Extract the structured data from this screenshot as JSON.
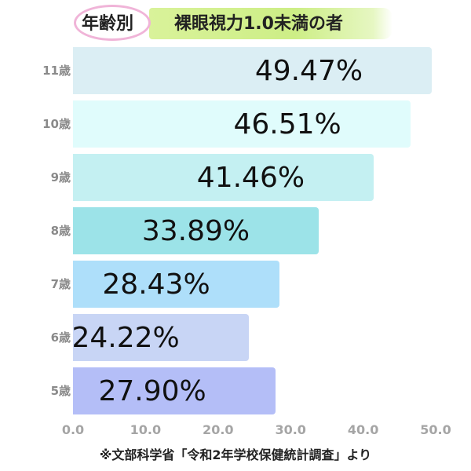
{
  "header": {
    "tag": "年齢別",
    "title": "裸眼視力1.0未満の者"
  },
  "source_note": "※文部科学省「令和2年学校保健統計調査」より",
  "chart_data": {
    "type": "bar",
    "orientation": "horizontal",
    "title": "年齢別 裸眼視力1.0未満の者",
    "xlabel": "",
    "ylabel": "",
    "xlim": [
      0,
      50
    ],
    "grid": false,
    "legend": null,
    "categories": [
      "11歳",
      "10歳",
      "9歳",
      "8歳",
      "7歳",
      "6歳",
      "5歳"
    ],
    "values": [
      49.47,
      46.51,
      41.46,
      33.89,
      28.43,
      24.22,
      27.9
    ],
    "value_labels": [
      "49.47%",
      "46.51%",
      "41.46%",
      "33.89%",
      "28.43%",
      "24.22%",
      "27.90%"
    ],
    "bar_colors": [
      "#dbeef4",
      "#e0fcfc",
      "#c4f0f2",
      "#9ce3e8",
      "#aedffa",
      "#c8d5f5",
      "#b4bef7"
    ],
    "x_ticks": [
      "0.0",
      "10.0",
      "20.0",
      "30.0",
      "40.0",
      "50.0"
    ],
    "x_tick_values": [
      0,
      10,
      20,
      30,
      40,
      50
    ],
    "annotation": "※文部科学省「令和2年学校保健統計調査」より"
  },
  "rows": [
    {
      "label": "11歳",
      "value": 49.47,
      "text": "49.47%",
      "color": "#dbeef4"
    },
    {
      "label": "10歳",
      "value": 46.51,
      "text": "46.51%",
      "color": "#e0fcfc"
    },
    {
      "label": "9歳",
      "value": 41.46,
      "text": "41.46%",
      "color": "#c4f0f2"
    },
    {
      "label": "8歳",
      "value": 33.89,
      "text": "33.89%",
      "color": "#9ce3e8"
    },
    {
      "label": "7歳",
      "value": 28.43,
      "text": "28.43%",
      "color": "#aedffa"
    },
    {
      "label": "6歳",
      "value": 24.22,
      "text": "24.22%",
      "color": "#c8d5f5"
    },
    {
      "label": "5歳",
      "value": 27.9,
      "text": "27.90%",
      "color": "#b4bef7"
    }
  ],
  "x_axis": {
    "ticks": [
      "0.0",
      "10.0",
      "20.0",
      "30.0",
      "40.0",
      "50.0"
    ]
  }
}
